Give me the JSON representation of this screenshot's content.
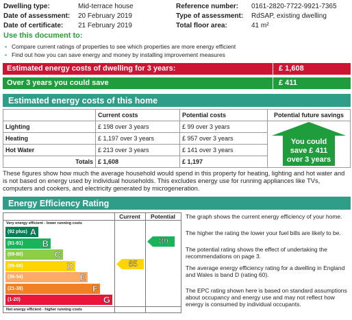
{
  "header": {
    "fields": [
      {
        "label": "Dwelling type:",
        "value": "Mid-terrace house"
      },
      {
        "label": "Reference number:",
        "value": "0161-2820-7722-9921-7365"
      },
      {
        "label": "Date of assessment:",
        "value": "20  February  2019"
      },
      {
        "label": "Type of assessment:",
        "value": "RdSAP, existing dwelling"
      },
      {
        "label": "Date of certificate:",
        "value": "21  February  2019"
      },
      {
        "label": "Total floor area:",
        "value": "41 m²"
      }
    ]
  },
  "use_document": {
    "title": "Use this document to:",
    "bullets": [
      "Compare current ratings of properties to see which properties are more energy efficient",
      "Find out how you can save energy and money by installing improvement measures"
    ]
  },
  "summary": {
    "total_label": "Estimated energy costs of dwelling for 3 years:",
    "total_value": "£ 1,608",
    "save_label": "Over 3 years you could save",
    "save_value": "£ 411"
  },
  "costs": {
    "title": "Estimated energy costs of this home",
    "columns": [
      "Current costs",
      "Potential costs",
      "Potential future savings"
    ],
    "rows": [
      {
        "label": "Lighting",
        "current": "£ 198 over 3 years",
        "potential": "£ 99 over 3 years"
      },
      {
        "label": "Heating",
        "current": "£ 1,197 over 3 years",
        "potential": "£ 957 over 3 years"
      },
      {
        "label": "Hot Water",
        "current": "£ 213 over 3 years",
        "potential": "£ 141 over 3 years"
      }
    ],
    "totals": {
      "label": "Totals",
      "current": "£ 1,608",
      "potential": "£ 1,197"
    },
    "savings_note": [
      "You could",
      "save £ 411",
      "over 3 years"
    ]
  },
  "costs_note": "These figures show how much the average household would spend in this property for heating, lighting and hot water and is not based on energy used by individual households. This excludes energy use for running appliances like TVs, computers and cookers, and electricity generated by microgeneration.",
  "rating": {
    "title": "Energy Efficiency Rating",
    "columns": [
      "Current",
      "Potential"
    ],
    "top_note": "Very energy efficient - lower running costs",
    "bottom_note": "Not energy efficient - higher running costs",
    "bands": [
      {
        "range": "(92 plus)",
        "letter": "A"
      },
      {
        "range": "(81-91)",
        "letter": "B"
      },
      {
        "range": "(69-80)",
        "letter": "C"
      },
      {
        "range": "(55-68)",
        "letter": "D"
      },
      {
        "range": "(39-54)",
        "letter": "E"
      },
      {
        "range": "(21-38)",
        "letter": "F"
      },
      {
        "range": "(1-20)",
        "letter": "G"
      }
    ],
    "current": 65,
    "potential": 89,
    "notes": [
      "The graph shows the current energy efficiency of your home.",
      "The higher the rating the lower your fuel bills are likely to be.",
      "The potential rating shows the effect of undertaking the recommendations on page 3.",
      "The average energy efficiency rating for a dwelling in England and Wales is band D (rating 60).",
      "The EPC rating shown here is based on standard assumptions about occupancy and energy use and may not reflect how energy is consumed by individual occupants."
    ]
  }
}
